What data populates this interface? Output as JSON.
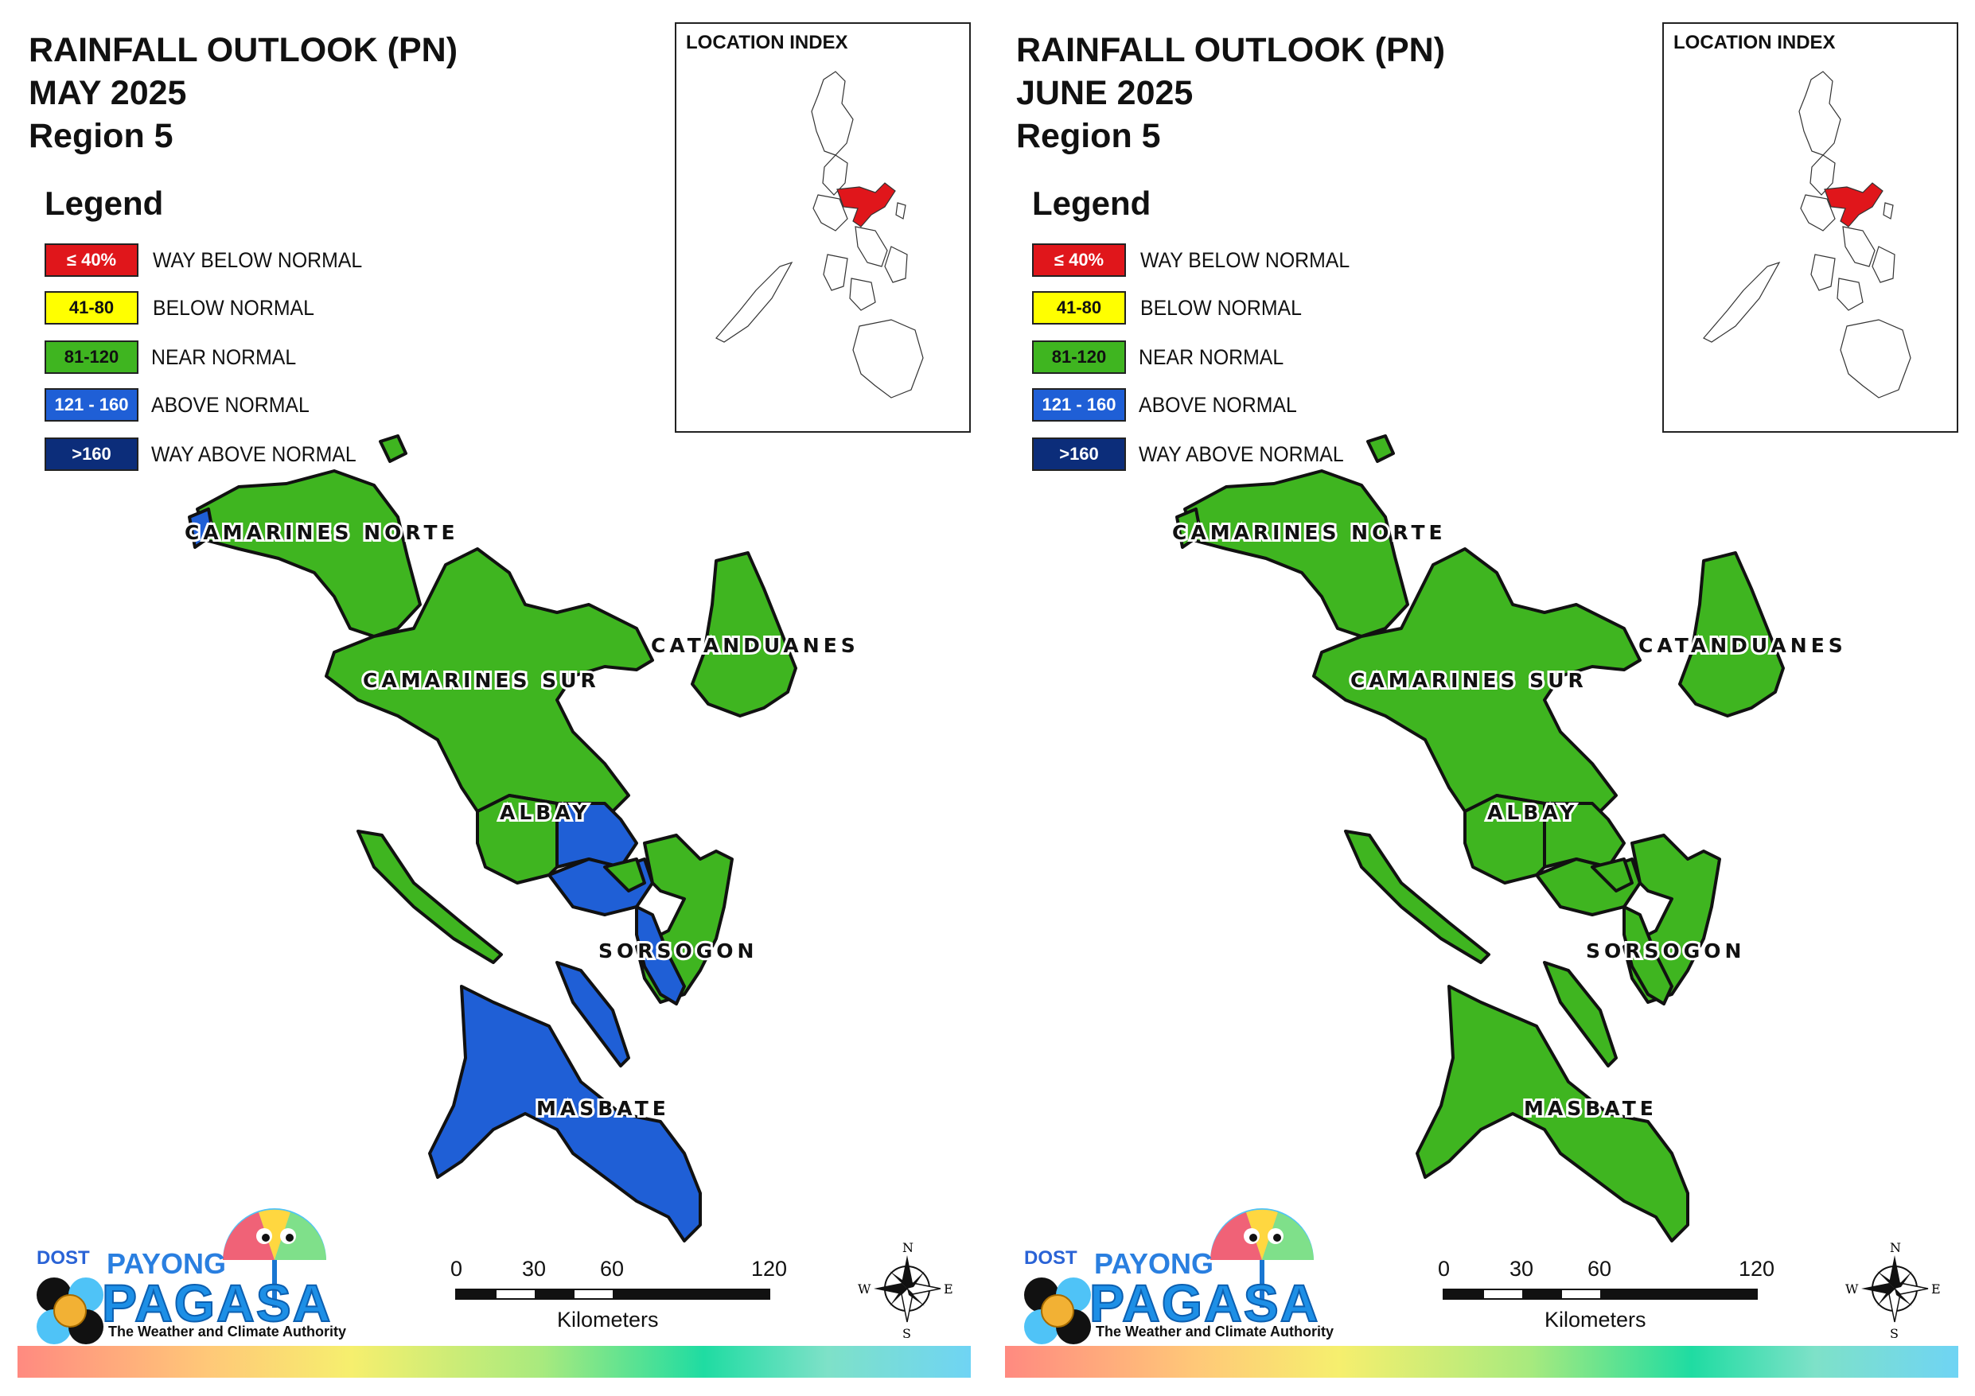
{
  "panels": [
    {
      "title_line1": "RAINFALL OUTLOOK (PN)",
      "title_line2": "MAY 2025",
      "title_line3": "Region 5",
      "legend_title": "Legend",
      "inset_title": "LOCATION INDEX",
      "province_categories": {
        "CAMARINES NORTE": "NEAR NORMAL",
        "CAMARINES SUR": "NEAR NORMAL",
        "CATANDUANES": "NEAR NORMAL",
        "ALBAY": "NEAR NORMAL / ABOVE NORMAL (east)",
        "SORSOGON": "NEAR NORMAL / ABOVE NORMAL (west)",
        "MASBATE": "ABOVE NORMAL"
      }
    },
    {
      "title_line1": "RAINFALL OUTLOOK (PN)",
      "title_line2": "JUNE 2025",
      "title_line3": "Region 5",
      "legend_title": "Legend",
      "inset_title": "LOCATION INDEX",
      "province_categories": {
        "CAMARINES NORTE": "NEAR NORMAL",
        "CAMARINES SUR": "NEAR NORMAL",
        "CATANDUANES": "NEAR NORMAL",
        "ALBAY": "NEAR NORMAL",
        "SORSOGON": "NEAR NORMAL",
        "MASBATE": "NEAR NORMAL"
      }
    }
  ],
  "legend": [
    {
      "range": "≤ 40%",
      "label": "WAY BELOW NORMAL",
      "color": "#e0161b",
      "text_color": "#ffffff"
    },
    {
      "range": "41-80",
      "label": "BELOW NORMAL",
      "color": "#ffff00",
      "text_color": "#111111"
    },
    {
      "range": "81-120",
      "label": "NEAR NORMAL",
      "color": "#3fb520",
      "text_color": "#111111"
    },
    {
      "range": "121 - 160",
      "label": "ABOVE NORMAL",
      "color": "#1f5fd6",
      "text_color": "#ffffff"
    },
    {
      "range": ">160",
      "label": "WAY ABOVE NORMAL",
      "color": "#0c2d7a",
      "text_color": "#ffffff"
    }
  ],
  "provinces": {
    "camarines_norte": "CAMARINES NORTE",
    "camarines_sur": "CAMARINES SUR",
    "catanduanes": "CATANDUANES",
    "albay": "ALBAY",
    "sorsogon": "SORSOGON",
    "masbate": "MASBATE"
  },
  "scale": {
    "t0": "0",
    "t1": "30",
    "t2": "60",
    "t3": "120",
    "unit": "Kilometers"
  },
  "compass": {
    "n": "N",
    "s": "S",
    "e": "E",
    "w": "W"
  },
  "logo": {
    "dost": "DOST",
    "payong": "PAYONG",
    "pagasa": "PAGASA",
    "tagline": "The Weather and Climate Authority"
  },
  "colors": {
    "near_normal": "#3fb520",
    "above_normal": "#1f5fd6",
    "highlight": "#e0161b",
    "outline": "#111111"
  }
}
